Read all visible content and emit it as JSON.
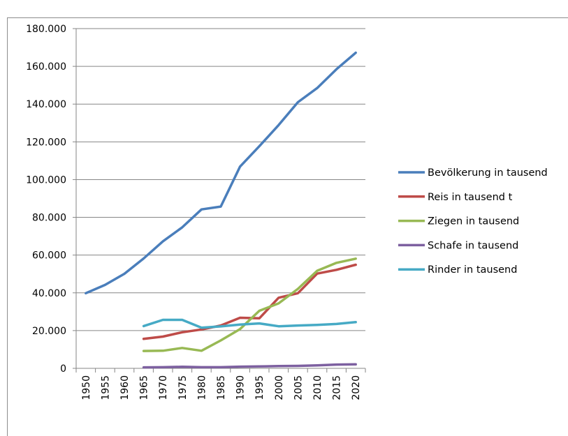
{
  "chart_data": {
    "type": "line",
    "title": "",
    "xlabel": "",
    "ylabel": "",
    "ylim": [
      0,
      180000
    ],
    "yticks": [
      "0",
      "20.000",
      "40.000",
      "60.000",
      "80.000",
      "100.000",
      "120.000",
      "140.000",
      "160.000",
      "180.000"
    ],
    "ytick_values": [
      0,
      20000,
      40000,
      60000,
      80000,
      100000,
      120000,
      140000,
      160000,
      180000
    ],
    "grid": true,
    "legend_position": "right",
    "categories": [
      "1950",
      "1955",
      "1960",
      "1965",
      "1970",
      "1975",
      "1980",
      "1985",
      "1990",
      "1995",
      "2000",
      "2005",
      "2010",
      "2015",
      "2020"
    ],
    "series": [
      {
        "name": "Bevölkerung in tausend",
        "color": "#4a7ebb",
        "values": [
          39800,
          44200,
          50100,
          58200,
          67300,
          74700,
          84200,
          85700,
          106900,
          117700,
          128900,
          141000,
          148500,
          158500,
          167200
        ]
      },
      {
        "name": "Reis in tausend  t",
        "color": "#be4b48",
        "values": [
          null,
          null,
          null,
          15600,
          16800,
          19100,
          20600,
          22700,
          26800,
          26500,
          37400,
          39800,
          50200,
          52200,
          54900
        ]
      },
      {
        "name": "Ziegen in tausend",
        "color": "#98b954",
        "values": [
          null,
          null,
          null,
          9200,
          9300,
          10800,
          9300,
          14800,
          20800,
          30500,
          34400,
          42100,
          51700,
          55900,
          58100
        ]
      },
      {
        "name": "Schafe in tausend",
        "color": "#7d60a0",
        "values": [
          null,
          null,
          null,
          500,
          600,
          800,
          600,
          600,
          900,
          1000,
          1200,
          1300,
          1600,
          2000,
          2100
        ]
      },
      {
        "name": "Rinder in tausend",
        "color": "#46aac5",
        "values": [
          null,
          null,
          null,
          22400,
          25700,
          25700,
          21500,
          22200,
          23200,
          23800,
          22300,
          22700,
          23000,
          23500,
          24500
        ]
      }
    ]
  }
}
